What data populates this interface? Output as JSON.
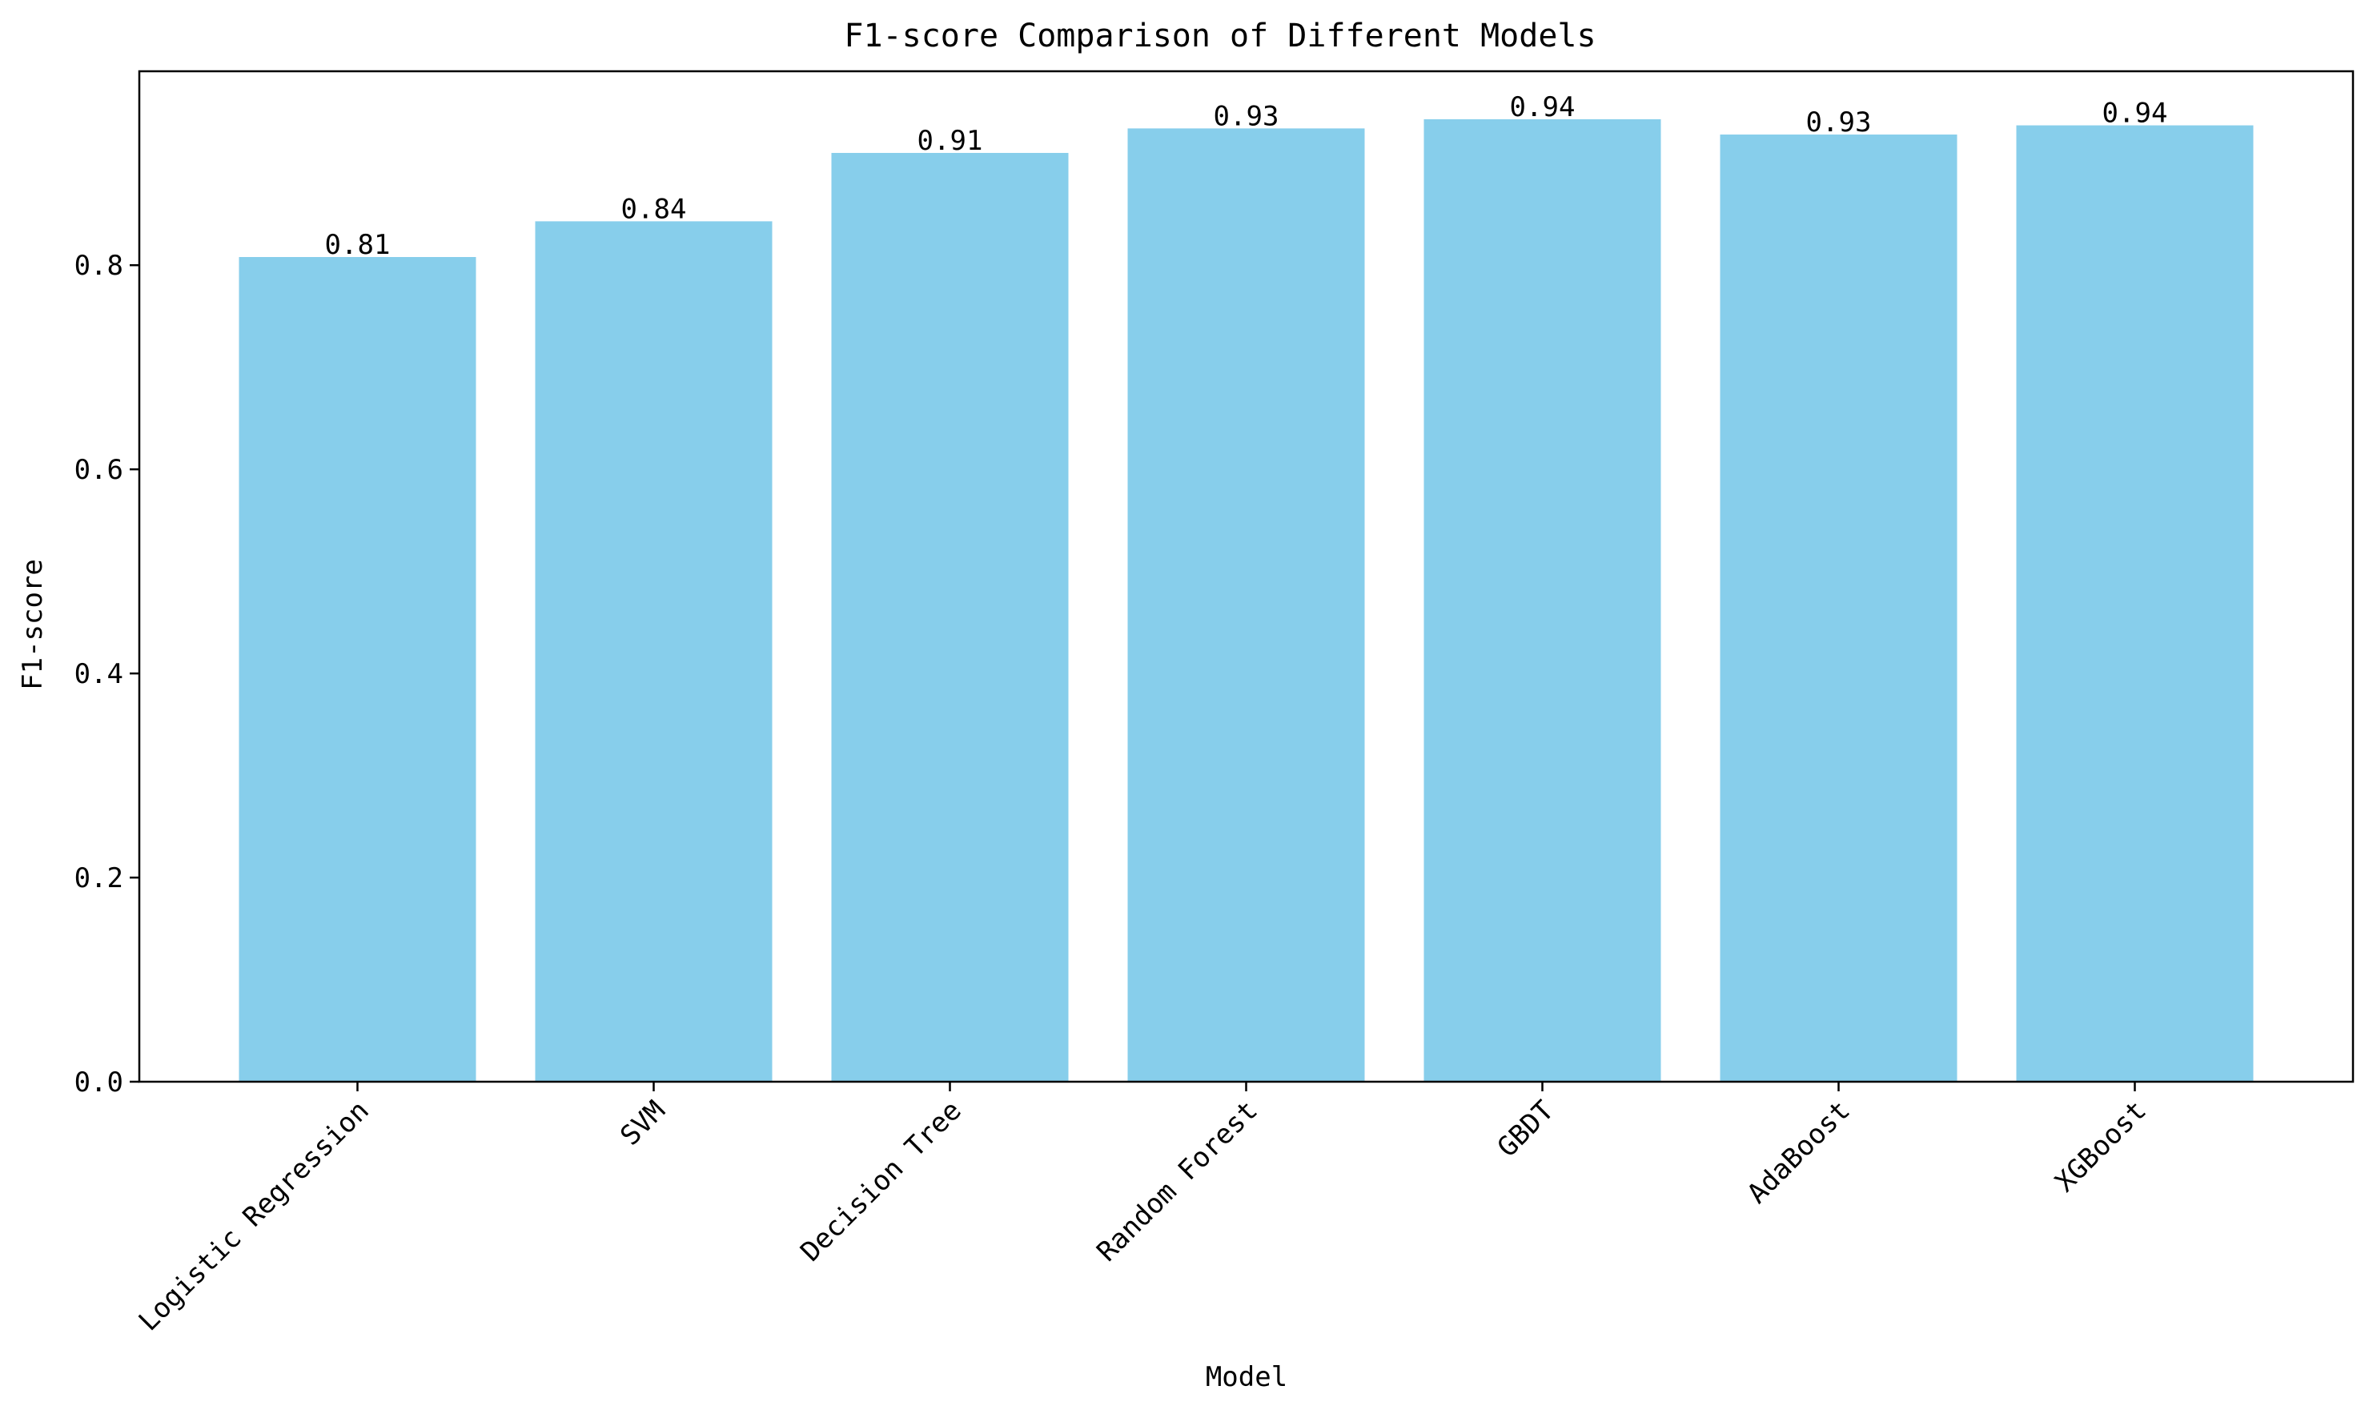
{
  "chart_data": {
    "type": "bar",
    "title": "F1-score Comparison of Different Models",
    "xlabel": "Model",
    "ylabel": "F1-score",
    "categories": [
      "Logistic Regression",
      "SVM",
      "Decision Tree",
      "Random Forest",
      "GBDT",
      "AdaBoost",
      "XGBoost"
    ],
    "values": [
      0.808,
      0.843,
      0.91,
      0.934,
      0.943,
      0.928,
      0.937
    ],
    "value_labels": [
      "0.81",
      "0.84",
      "0.91",
      "0.93",
      "0.94",
      "0.93",
      "0.94"
    ],
    "ylim": [
      0,
      0.99
    ],
    "yticks": [
      0.0,
      0.2,
      0.4,
      0.6,
      0.8
    ],
    "ytick_labels": [
      "0.0",
      "0.2",
      "0.4",
      "0.6",
      "0.8"
    ],
    "grid": false,
    "bar_color": "#87ceeb",
    "axis_color": "#000000",
    "text_color": "#000000"
  }
}
